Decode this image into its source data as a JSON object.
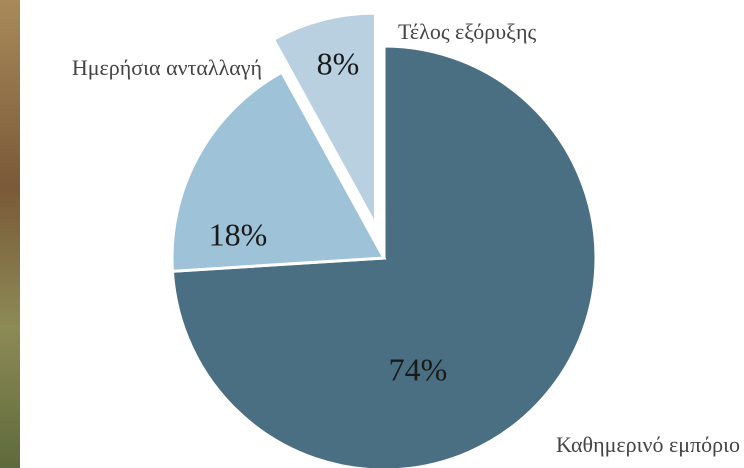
{
  "chart_data": {
    "type": "pie",
    "categories": [
      "Καθημερινό εμπόριο",
      "Ημερήσια ανταλλαγή",
      "Τέλος εξόρυξης"
    ],
    "values": [
      74,
      18,
      8
    ],
    "value_labels": [
      "74%",
      "18%",
      "8%"
    ],
    "colors": [
      "#4b6f82",
      "#9ec2d8",
      "#b8d0e0"
    ]
  }
}
